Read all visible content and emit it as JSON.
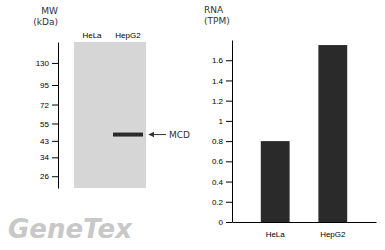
{
  "chart_data": [
    {
      "type": "western_blot",
      "categories": [
        "HeLa",
        "HepG2"
      ],
      "values": [
        null,
        47
      ],
      "color": "#2a2a2a",
      "ylabel": "MW\n(kDa)",
      "log": "y",
      "ylim": [
        22,
        175
      ],
      "yticks": [
        130,
        95,
        72,
        55,
        43,
        34,
        26
      ],
      "annotations": [
        {
          "text": "MCD",
          "y": 47
        },
        {
          "text": "GeneTex",
          "color": "#c8c8c8"
        }
      ]
    },
    {
      "type": "bar",
      "categories": [
        "HeLa",
        "HepG2"
      ],
      "values": [
        0.8,
        1.75
      ],
      "color": "#2a2a2a",
      "ylabel": "RNA\n(TPM)",
      "ylim": [
        0,
        1.8
      ],
      "yticks": [
        0,
        0.2,
        0.4,
        0.6,
        0.8,
        1,
        1.2,
        1.4,
        1.6
      ]
    }
  ]
}
